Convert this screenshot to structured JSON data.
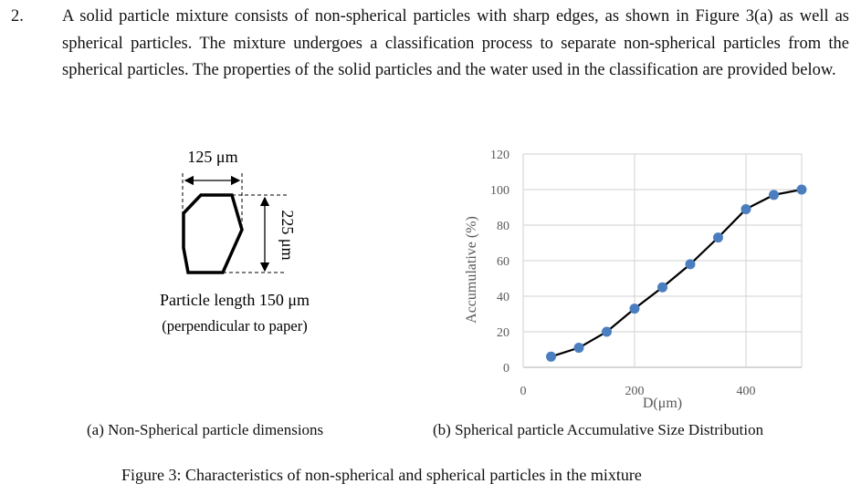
{
  "question": {
    "number": "2.",
    "text": "A solid particle mixture consists of non-spherical particles with sharp edges, as shown in Figure 3(a) as well as spherical particles. The mixture undergoes a classification process to separate non-spherical particles from the spherical particles. The properties of the solid particles and the water used in the classification are provided below."
  },
  "figure_a": {
    "width_label": "125 μm",
    "height_label": "225 μm",
    "length_label": "Particle length 150 μm",
    "length_note": "(perpendicular to paper)",
    "caption": "(a) Non-Spherical particle dimensions"
  },
  "figure_b": {
    "caption": "(b) Spherical particle Accumulative Size Distribution"
  },
  "figure_caption": "Figure 3: Characteristics of non-spherical and spherical particles in the mixture",
  "chart_data": {
    "type": "line",
    "xlabel": "D(μm)",
    "ylabel": "Accumulative (%)",
    "xlim": [
      0,
      500
    ],
    "ylim": [
      0,
      120
    ],
    "xticks": [
      0,
      200,
      400
    ],
    "yticks": [
      0,
      20,
      40,
      60,
      80,
      100,
      120
    ],
    "grid": true,
    "series": [
      {
        "x": [
          50,
          100,
          150,
          200,
          250,
          300,
          350,
          400,
          450,
          500
        ],
        "y": [
          6,
          11,
          20,
          33,
          45,
          58,
          73,
          89,
          97,
          100
        ],
        "line_color": "#000000",
        "marker_color": "#4a7ebf"
      }
    ]
  }
}
